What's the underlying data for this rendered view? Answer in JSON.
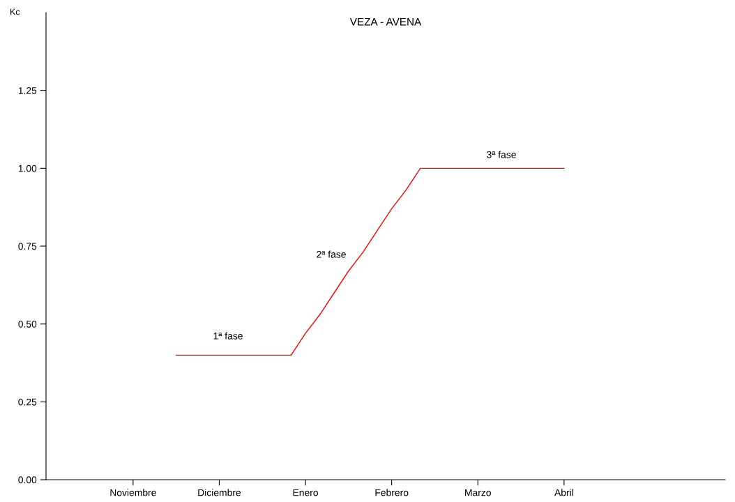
{
  "chart_data": {
    "type": "line",
    "title": "VEZA - AVENA",
    "ylabel": "Kc",
    "categories": [
      "Noviembre",
      null,
      null,
      null,
      null,
      null,
      "Diciembre",
      null,
      null,
      null,
      null,
      null,
      "Enero",
      null,
      null,
      null,
      null,
      null,
      "Febrero",
      null,
      null,
      null,
      null,
      null,
      "Marzo",
      null,
      null,
      null,
      null,
      null,
      "Abril"
    ],
    "series": [
      {
        "color": "#ff0000",
        "values": [
          null,
          null,
          null,
          0.4,
          0.4,
          0.4,
          0.4,
          0.4,
          0.4,
          0.4,
          0.4,
          0.4,
          0.47,
          0.53,
          0.6,
          0.67,
          0.73,
          0.8,
          0.87,
          0.93,
          1.0,
          1.0,
          1.0,
          1.0,
          1.0,
          1.0,
          1.0,
          1.0,
          1.0,
          1.0,
          1.0
        ]
      }
    ],
    "ylim": [
      0,
      1.5
    ],
    "yticks": [
      {
        "value": 0,
        "label": "0.00"
      },
      {
        "value": 0.25,
        "label": "0.25"
      },
      {
        "value": 0.5,
        "label": "0.50"
      },
      {
        "value": 0.75,
        "label": "0.75"
      },
      {
        "value": 1.0,
        "label": "1.00"
      },
      {
        "value": 1.25,
        "label": "1.25"
      }
    ],
    "annotations": [
      "1ª fase",
      "2ª fase",
      "3ª fase"
    ],
    "grid": false,
    "legend": false,
    "marker": "none",
    "line_style": "solid"
  }
}
